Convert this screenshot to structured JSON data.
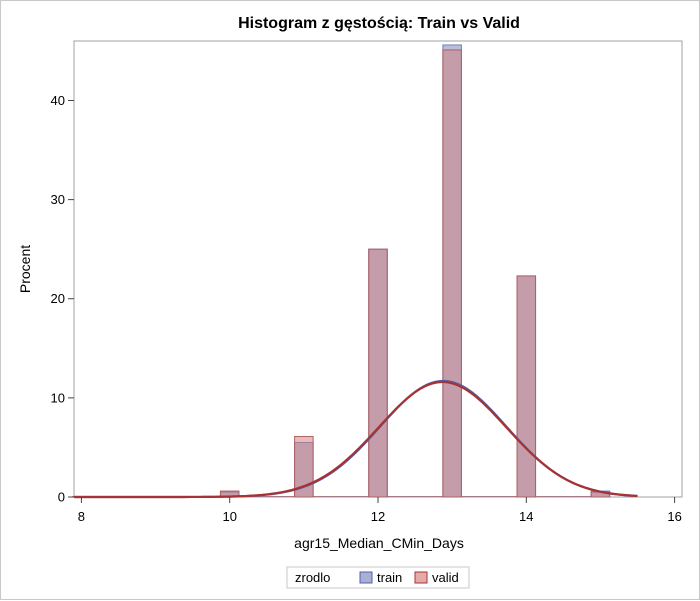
{
  "chart_data": {
    "type": "bar",
    "title": "Histogram z gęstością: Train vs Valid",
    "xlabel": "agr15_Median_CMin_Days",
    "ylabel": "Procent",
    "xlim": [
      7.9,
      16.1
    ],
    "ylim": [
      0,
      46
    ],
    "xticks": [
      "8",
      "10",
      "12",
      "14",
      "16"
    ],
    "yticks": [
      "0",
      "10",
      "20",
      "30",
      "40"
    ],
    "bin_width": 0.25,
    "x": [
      8,
      8.25,
      8.5,
      8.75,
      9,
      9.25,
      9.5,
      9.75,
      10,
      10.25,
      10.5,
      10.75,
      11,
      11.25,
      11.5,
      11.75,
      12,
      12.25,
      12.5,
      12.75,
      13,
      13.25,
      13.5,
      13.75,
      14,
      14.25,
      14.5,
      14.75,
      15
    ],
    "series": [
      {
        "name": "train",
        "color": "#7480b8",
        "values": [
          0,
          0,
          0,
          0,
          0,
          0,
          0,
          0,
          0.5,
          0,
          0,
          0,
          5.5,
          0,
          0,
          0,
          25.0,
          0,
          0,
          0,
          45.6,
          0,
          0,
          0,
          22.3,
          0,
          0,
          0,
          0.6
        ]
      },
      {
        "name": "valid",
        "color": "#d27a7a",
        "values": [
          0,
          0,
          0,
          0,
          0,
          0,
          0,
          0,
          0.6,
          0,
          0,
          0,
          6.1,
          0,
          0,
          0,
          25.0,
          0,
          0,
          0,
          45.1,
          0,
          0,
          0,
          22.3,
          0,
          0,
          0,
          0.5
        ]
      }
    ],
    "density": [
      {
        "name": "train",
        "mean": 12.88,
        "sd": 0.852,
        "color": "#5060a8"
      },
      {
        "name": "valid",
        "mean": 12.87,
        "sd": 0.86,
        "color": "#a83232"
      }
    ],
    "density_range": [
      7.9,
      15.5
    ],
    "grid": false
  },
  "legend": {
    "title": "zrodlo",
    "items": [
      {
        "label": "train",
        "color": "#a9b0d3"
      },
      {
        "label": "valid",
        "color": "#e4a9a9"
      }
    ]
  }
}
